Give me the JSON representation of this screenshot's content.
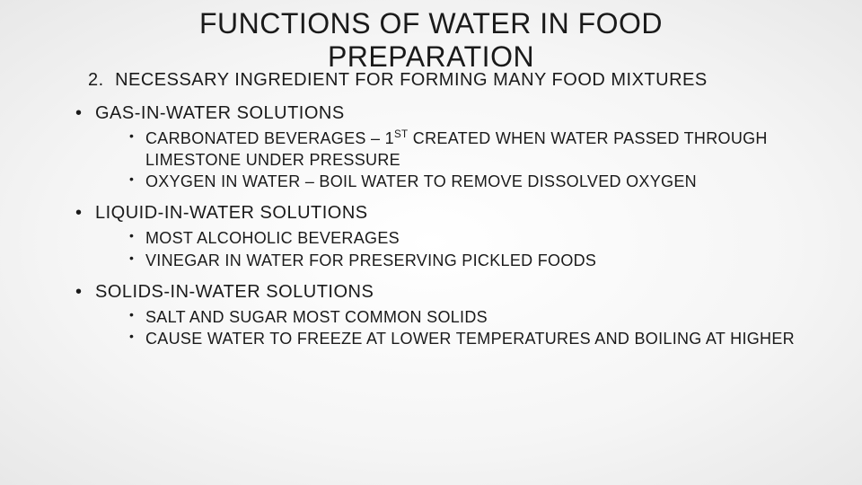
{
  "title_line1": "FUNCTIONS OF WATER IN FOOD",
  "title_line2": "PREPARATION",
  "numbered": {
    "num": "2.",
    "text": "NECESSARY INGREDIENT FOR FORMING MANY FOOD MIXTURES"
  },
  "sections": [
    {
      "heading": "GAS-IN-WATER SOLUTIONS",
      "items": [
        {
          "pre": "CARBONATED BEVERAGES – 1",
          "sup": "ST",
          "post": " CREATED WHEN WATER PASSED THROUGH LIMESTONE UNDER PRESSURE"
        },
        {
          "pre": "OXYGEN IN WATER – BOIL WATER TO REMOVE DISSOLVED OXYGEN",
          "sup": "",
          "post": ""
        }
      ]
    },
    {
      "heading": "LIQUID-IN-WATER SOLUTIONS",
      "items": [
        {
          "pre": "MOST ALCOHOLIC BEVERAGES",
          "sup": "",
          "post": ""
        },
        {
          "pre": "VINEGAR IN WATER FOR PRESERVING PICKLED FOODS",
          "sup": "",
          "post": ""
        }
      ]
    },
    {
      "heading": "SOLIDS-IN-WATER SOLUTIONS",
      "items": [
        {
          "pre": "SALT AND SUGAR MOST COMMON SOLIDS",
          "sup": "",
          "post": ""
        },
        {
          "pre": "CAUSE WATER TO FREEZE AT LOWER TEMPERATURES AND BOILING AT HIGHER",
          "sup": "",
          "post": ""
        }
      ]
    }
  ]
}
